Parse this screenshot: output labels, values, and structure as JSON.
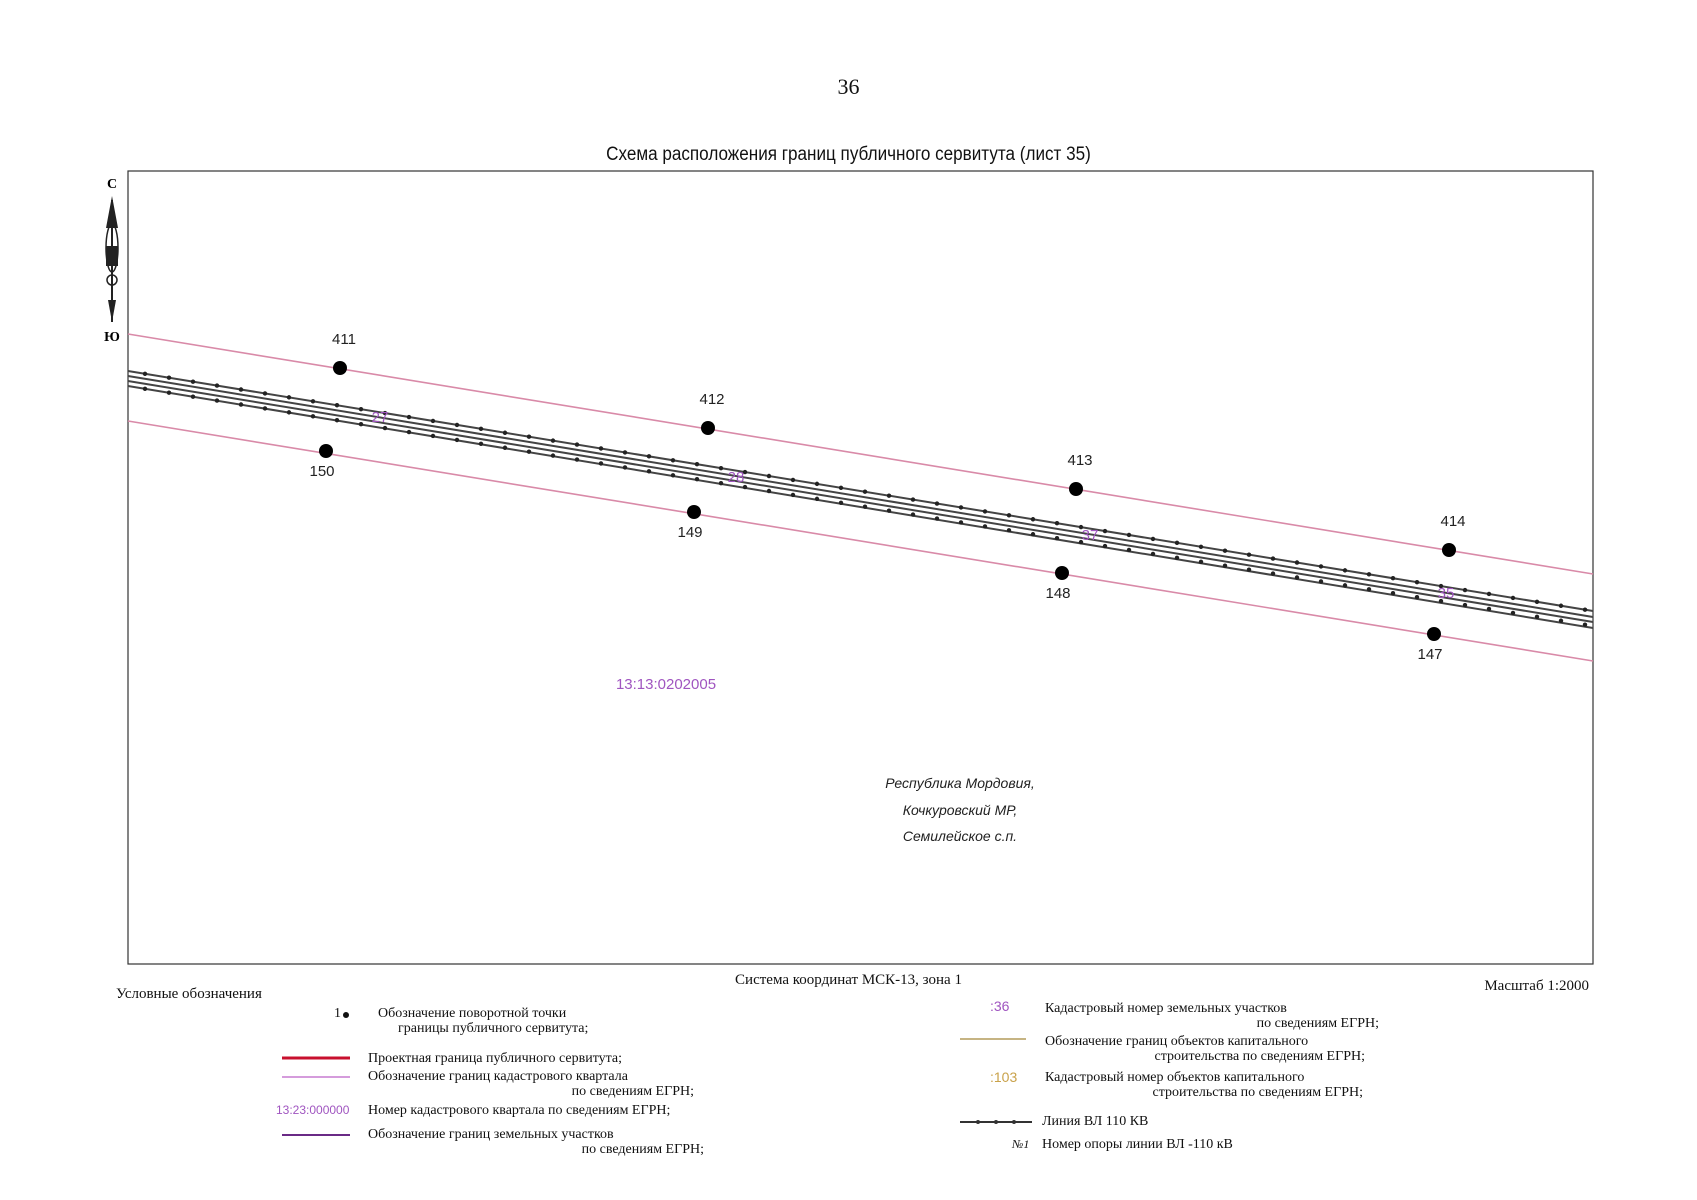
{
  "page_number": "36",
  "map_title": "Схема расположения границ публичного сервитута (лист 35)",
  "compass": {
    "north": "С",
    "south": "Ю",
    "icon": "north-arrow-icon"
  },
  "points_upper": [
    "411",
    "412",
    "413",
    "414"
  ],
  "points_lower": [
    "150",
    "149",
    "148",
    "147"
  ],
  "parcel_labels": [
    "27",
    "28",
    "37",
    "35"
  ],
  "quarter_number": "13:13:0202005",
  "region": {
    "line1": "Республика Мордовия,",
    "line2": "Кочкуровский МР,",
    "line3": "Семилейское с.п."
  },
  "coordinate_system": "Система координат МСК-13, зона 1",
  "scale": "Масштаб 1:2000",
  "legend": {
    "title": "Условные обозначения",
    "turn_point_symbol": "1",
    "turn_point_line1": "Обозначение поворотной точки",
    "turn_point_line2": "границы публичного сервитута;",
    "project_boundary": "Проектная граница публичного сервитута;",
    "quarter_boundary_line1": "Обозначение границ кадастрового квартала",
    "quarter_boundary_line2": "по сведениям ЕГРН;",
    "quarter_number_sample": "13:23:000000",
    "quarter_number_text": "Номер кадастрового квартала по сведениям ЕГРН;",
    "parcels_boundary_line1": "Обозначение границ земельных участков",
    "parcels_boundary_line2": "по сведениям ЕГРН;",
    "parcel_number_sample": ":36",
    "parcel_number_line1": "Кадастровый номер земельных участков",
    "parcel_number_line2": "по сведениям ЕГРН;",
    "capital_boundary_line1": "Обозначение границ объектов капитального",
    "capital_boundary_line2": "строительства по сведениям ЕГРН;",
    "capital_number_sample": ":103",
    "capital_number_line1": "Кадастровый номер объектов капитального",
    "capital_number_line2": "строительства по сведениям ЕГРН;",
    "vl_line_text": "Линия ВЛ 110 КВ",
    "pole_number_sample": "№1",
    "pole_number_text": "Номер опоры линии ВЛ -110 кВ"
  },
  "colors": {
    "servitude": "#d98aa8",
    "project_boundary": "#c8102e",
    "quarter_boundary": "#c77bd0",
    "parcel_boundary": "#6a2a86",
    "cad_text": "#a055c0",
    "capital_boundary": "#b39b5a",
    "capital_text": "#c9a24a"
  }
}
